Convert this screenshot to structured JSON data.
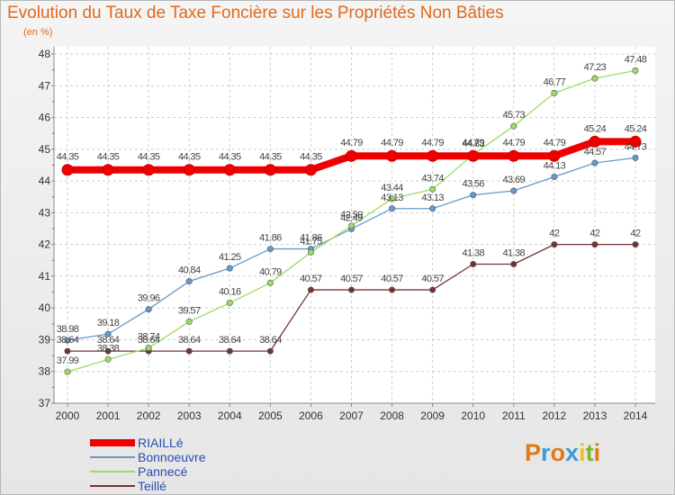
{
  "title": "Evolution du Taux de Taxe Foncière sur les Propriétés Non Bâties",
  "unit": "(en %)",
  "brand": {
    "letters": [
      "P",
      "r",
      "o",
      "x",
      "i",
      "t",
      "i"
    ],
    "colors": [
      "#e07a1a",
      "#3a9ad9",
      "#e07a1a",
      "#3a9ad9",
      "#f0c020",
      "#7ab82a",
      "#e07a1a"
    ]
  },
  "chart_data": {
    "type": "line",
    "x": [
      2000,
      2001,
      2002,
      2003,
      2004,
      2005,
      2006,
      2007,
      2008,
      2009,
      2010,
      2011,
      2012,
      2013,
      2014
    ],
    "ylim": [
      37,
      48
    ],
    "yticks": [
      37,
      38,
      39,
      40,
      41,
      42,
      43,
      44,
      45,
      46,
      47,
      48
    ],
    "grid": true,
    "legend_position": "bottom-left",
    "series": [
      {
        "name": "RIAILLé",
        "color": "#ee0000",
        "highlight": true,
        "values": [
          44.35,
          44.35,
          44.35,
          44.35,
          44.35,
          44.35,
          44.35,
          44.79,
          44.79,
          44.79,
          44.79,
          44.79,
          44.79,
          45.24,
          45.24
        ],
        "labels": [
          "44.35",
          "44.35",
          "44.35",
          "44.35",
          "44.35",
          "44.35",
          "44.35",
          "44.79",
          "44.79",
          "44.79",
          "44.79",
          "44.79",
          "44.79",
          "45.24",
          "45.24"
        ]
      },
      {
        "name": "Bonnoeuvre",
        "color": "#6699cc",
        "values": [
          38.98,
          39.18,
          39.96,
          40.84,
          41.25,
          41.86,
          41.86,
          42.49,
          43.13,
          43.13,
          43.56,
          43.69,
          44.13,
          44.57,
          44.73
        ],
        "labels": [
          "38.98",
          "39.18",
          "39.96",
          "40.84",
          "41.25",
          "41.86",
          "41.86",
          "42.49",
          "43.13",
          "43.13",
          "43.56",
          "43.69",
          "44.13",
          "44.57",
          "44.73"
        ]
      },
      {
        "name": "Pannecé",
        "color": "#99dd66",
        "values": [
          37.99,
          38.38,
          38.74,
          39.57,
          40.16,
          40.79,
          41.75,
          42.59,
          43.44,
          43.74,
          44.83,
          45.73,
          46.77,
          47.23,
          47.48
        ],
        "labels": [
          "37.99",
          "38.38",
          "38.74",
          "39.57",
          "40.16",
          "40.79",
          "41.75",
          "42.59",
          "43.44",
          "43.74",
          "44.83",
          "45.73",
          "46.77",
          "47.23",
          "47.48"
        ]
      },
      {
        "name": "Teillé",
        "color": "#773333",
        "values": [
          38.64,
          38.64,
          38.64,
          38.64,
          38.64,
          38.64,
          40.57,
          40.57,
          40.57,
          40.57,
          41.38,
          41.38,
          42,
          42,
          42
        ],
        "labels": [
          "38.64",
          "38.64",
          "38.64",
          "38.64",
          "38.64",
          "38.64",
          "40.57",
          "40.57",
          "40.57",
          "40.57",
          "41.38",
          "41.38",
          "42",
          "42",
          "42"
        ]
      }
    ]
  }
}
